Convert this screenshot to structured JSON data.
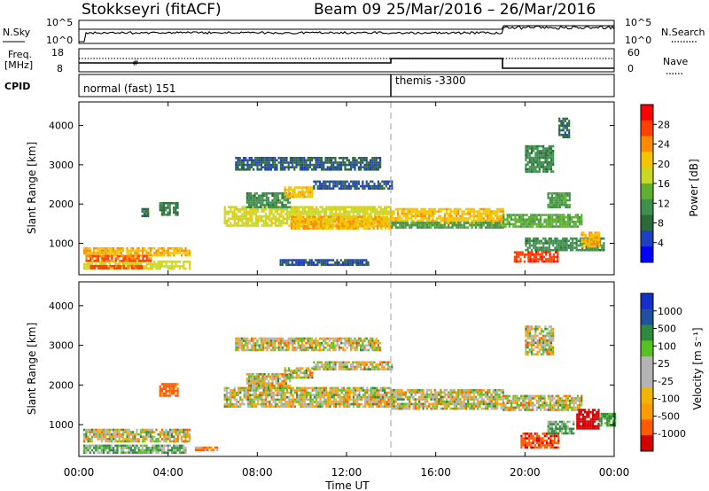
{
  "header": {
    "station": "Stokkseyri (fitACF)",
    "beam": "Beam 09",
    "date_range": "25/Mar/2016 – 26/Mar/2016"
  },
  "noise_panel": {
    "left_label": "N.Sky",
    "right_label": "N.Search",
    "left_ticks": [
      "10^5",
      "10^0"
    ],
    "right_ticks": [
      "10^5",
      "10^0"
    ]
  },
  "freq_panel": {
    "left_label_1": "Freq.",
    "left_label_2": "[MHz]",
    "left_ticks": [
      "18",
      "8"
    ],
    "right_label": "Nave",
    "right_ticks": [
      "60",
      "0"
    ]
  },
  "cpid_panel": {
    "label": "CPID",
    "modes": [
      {
        "name": "normal (fast) 151",
        "start_hour": 0,
        "end_hour": 14
      },
      {
        "name": "themis -3300",
        "start_hour": 14,
        "end_hour": 24
      }
    ]
  },
  "time_axis": {
    "label": "Time UT",
    "ticks": [
      "00:00",
      "04:00",
      "08:00",
      "12:00",
      "16:00",
      "20:00",
      "00:00"
    ]
  },
  "range_axis": {
    "label": "Slant Range [km]",
    "ticks": [
      "4000",
      "3000",
      "2000",
      "1000"
    ]
  },
  "colors": {
    "power_scale": [
      "#0000ff",
      "#1f3fbf",
      "#2d6a3a",
      "#3f8f4f",
      "#5fb030",
      "#c7d825",
      "#f5c400",
      "#ff8c00",
      "#ff4000",
      "#ff0000"
    ],
    "velocity_scale": [
      "#d40000",
      "#ff5a00",
      "#ff9a00",
      "#f2b400",
      "#b4b4b4",
      "#b4b4b4",
      "#58c020",
      "#2f8a3f",
      "#2050a0",
      "#1430c8"
    ],
    "ground_scatter": "#b4b4b4"
  },
  "power_colorbar": {
    "label": "Power [dB]",
    "ticks": [
      "28",
      "24",
      "20",
      "16",
      "12",
      "8",
      "4"
    ]
  },
  "velocity_colorbar": {
    "label": "Velocity [m s⁻¹]",
    "ticks": [
      "1000",
      "500",
      "100",
      "25",
      "-25",
      "-100",
      "-500",
      "-1000"
    ]
  },
  "chart_data": [
    {
      "type": "heatmap",
      "name": "power",
      "x_unit": "hours UT",
      "xlim": [
        0,
        24
      ],
      "ylim": [
        200,
        4600
      ],
      "vlim": [
        0,
        32
      ],
      "regions": [
        {
          "t0": 0.2,
          "t1": 5.0,
          "r0": 700,
          "r1": 900,
          "value": 22
        },
        {
          "t0": 0.2,
          "t1": 5.0,
          "r0": 380,
          "r1": 560,
          "value": 18
        },
        {
          "t0": 0.3,
          "t1": 3.2,
          "r0": 550,
          "r1": 700,
          "value": 26
        },
        {
          "t0": 0.5,
          "t1": 2.8,
          "r0": 350,
          "r1": 450,
          "value": 27
        },
        {
          "t0": 3.6,
          "t1": 4.4,
          "r0": 1750,
          "r1": 2050,
          "value": 9
        },
        {
          "t0": 2.8,
          "t1": 3.1,
          "r0": 1700,
          "r1": 1900,
          "value": 8
        },
        {
          "t0": 6.5,
          "t1": 14.0,
          "r0": 1450,
          "r1": 1950,
          "value": 18
        },
        {
          "t0": 9.5,
          "t1": 14.0,
          "r0": 1400,
          "r1": 1700,
          "value": 22
        },
        {
          "t0": 7.5,
          "t1": 9.5,
          "r0": 1900,
          "r1": 2300,
          "value": 11
        },
        {
          "t0": 9.2,
          "t1": 10.5,
          "r0": 2200,
          "r1": 2450,
          "value": 21
        },
        {
          "t0": 7.0,
          "t1": 13.5,
          "r0": 2900,
          "r1": 3200,
          "value": 7
        },
        {
          "t0": 10.5,
          "t1": 14.0,
          "r0": 2400,
          "r1": 2600,
          "value": 6
        },
        {
          "t0": 9.0,
          "t1": 13.0,
          "r0": 450,
          "r1": 600,
          "value": 6
        },
        {
          "t0": 14.0,
          "t1": 19.0,
          "r0": 1500,
          "r1": 1900,
          "value": 21
        },
        {
          "t0": 14.0,
          "t1": 19.0,
          "r0": 1400,
          "r1": 1550,
          "value": 12
        },
        {
          "t0": 19.0,
          "t1": 22.5,
          "r0": 1400,
          "r1": 1750,
          "value": 14
        },
        {
          "t0": 19.5,
          "t1": 21.5,
          "r0": 550,
          "r1": 800,
          "value": 28
        },
        {
          "t0": 20.0,
          "t1": 23.5,
          "r0": 800,
          "r1": 1150,
          "value": 11
        },
        {
          "t0": 22.5,
          "t1": 23.3,
          "r0": 900,
          "r1": 1300,
          "value": 22
        },
        {
          "t0": 20.0,
          "t1": 21.3,
          "r0": 2800,
          "r1": 3500,
          "value": 10
        },
        {
          "t0": 21.0,
          "t1": 22.0,
          "r0": 1900,
          "r1": 2300,
          "value": 12
        },
        {
          "t0": 21.5,
          "t1": 22.0,
          "r0": 3700,
          "r1": 4200,
          "value": 8
        }
      ]
    },
    {
      "type": "heatmap",
      "name": "velocity",
      "x_unit": "hours UT",
      "xlim": [
        0,
        24
      ],
      "ylim": [
        200,
        4600
      ],
      "vlim": [
        -1000,
        1000
      ],
      "regions": [
        {
          "t0": 0.2,
          "t1": 5.0,
          "r0": 600,
          "r1": 900,
          "value": 0
        },
        {
          "t0": 0.2,
          "t1": 4.8,
          "r0": 300,
          "r1": 500,
          "value": 100
        },
        {
          "t0": 3.6,
          "t1": 4.4,
          "r0": 1750,
          "r1": 2050,
          "value": -200
        },
        {
          "t0": 5.2,
          "t1": 6.2,
          "r0": 350,
          "r1": 450,
          "value": -80
        },
        {
          "t0": 6.5,
          "t1": 14.0,
          "r0": 1450,
          "r1": 1950,
          "value": 0
        },
        {
          "t0": 7.5,
          "t1": 9.5,
          "r0": 1900,
          "r1": 2300,
          "value": 0
        },
        {
          "t0": 9.2,
          "t1": 10.5,
          "r0": 2200,
          "r1": 2450,
          "value": 0
        },
        {
          "t0": 7.0,
          "t1": 13.5,
          "r0": 2900,
          "r1": 3200,
          "value": 0
        },
        {
          "t0": 10.5,
          "t1": 14.0,
          "r0": 2400,
          "r1": 2600,
          "value": 0
        },
        {
          "t0": 14.0,
          "t1": 19.0,
          "r0": 1500,
          "r1": 1900,
          "value": 0
        },
        {
          "t0": 14.0,
          "t1": 19.0,
          "r0": 1400,
          "r1": 1550,
          "value": 0
        },
        {
          "t0": 19.0,
          "t1": 22.5,
          "r0": 1400,
          "r1": 1750,
          "value": 0
        },
        {
          "t0": 19.8,
          "t1": 21.5,
          "r0": 400,
          "r1": 800,
          "value": -450
        },
        {
          "t0": 22.3,
          "t1": 23.3,
          "r0": 900,
          "r1": 1400,
          "value": -800
        },
        {
          "t0": 21.0,
          "t1": 22.2,
          "r0": 800,
          "r1": 1100,
          "value": 120
        },
        {
          "t0": 20.0,
          "t1": 21.3,
          "r0": 2800,
          "r1": 3500,
          "value": 0
        },
        {
          "t0": 23.3,
          "t1": 24.0,
          "r0": 1000,
          "r1": 1300,
          "value": 150
        }
      ]
    }
  ]
}
